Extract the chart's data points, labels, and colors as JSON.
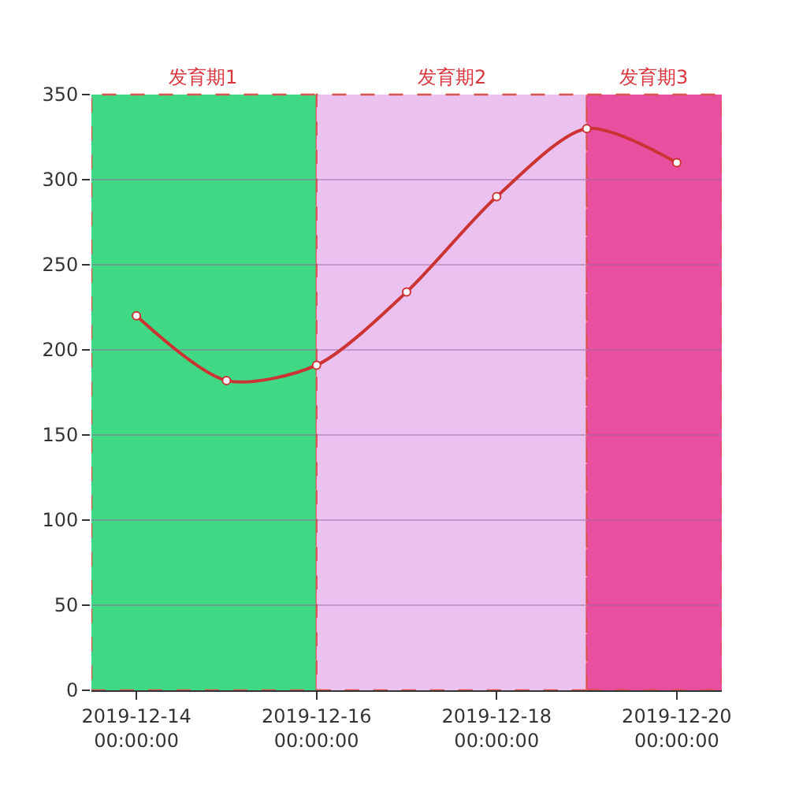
{
  "chart_data": {
    "type": "line",
    "x": [
      "2019-12-14",
      "2019-12-15",
      "2019-12-16",
      "2019-12-17",
      "2019-12-18",
      "2019-12-19",
      "2019-12-20"
    ],
    "series": [
      {
        "color": "#cc3333",
        "values": [
          220,
          182,
          191,
          234,
          290,
          330,
          310
        ]
      }
    ],
    "xlim": [
      "2019-12-13T12:00",
      "2019-12-20T12:00"
    ],
    "xticks": [
      {
        "value": "2019-12-14",
        "label": "2019-12-14\n00:00:00"
      },
      {
        "value": "2019-12-16",
        "label": "2019-12-16\n00:00:00"
      },
      {
        "value": "2019-12-18",
        "label": "2019-12-18\n00:00:00"
      },
      {
        "value": "2019-12-20",
        "label": "2019-12-20\n00:00:00"
      }
    ],
    "ylim": [
      0,
      350
    ],
    "yticks": [
      0,
      50,
      100,
      150,
      200,
      250,
      300,
      350
    ],
    "grid": "y",
    "marker": "circle",
    "line_style": "solid",
    "bands": [
      {
        "axis": "x",
        "from": "2019-12-13T12:00",
        "to": "2019-12-16",
        "label": "发育期1",
        "color": "#40d884"
      },
      {
        "axis": "x",
        "from": "2019-12-16",
        "to": "2019-12-19",
        "label": "发育期2",
        "color": "#ebc2ef"
      },
      {
        "axis": "x",
        "from": "2019-12-19",
        "to": "2019-12-20T12:00",
        "label": "发育期3",
        "color": "#e84f9f"
      }
    ]
  }
}
